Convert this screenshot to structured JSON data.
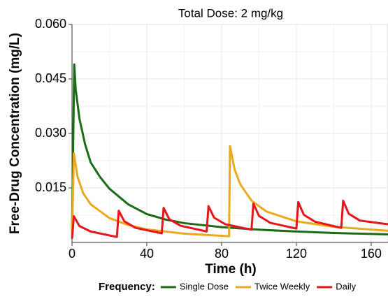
{
  "chart_data": {
    "type": "line",
    "title": "Total Dose: 2 mg/kg",
    "x_label": "Time (h)",
    "y_label": "Free-Drug Concentration (mg/L)",
    "legend_title": "Frequency:",
    "legend_position": "bottom",
    "grid": true,
    "xlim": [
      0,
      169
    ],
    "ylim": [
      0,
      0.06
    ],
    "xticks": [
      0,
      40,
      80,
      120,
      160
    ],
    "yticks": [
      0.015,
      {
        "value": 0.03,
        "label": "0.030"
      },
      0.045,
      {
        "value": 0.06,
        "label": "0.060"
      }
    ],
    "series": [
      {
        "name": "Single Dose",
        "color": "#1a6b14",
        "x": [
          0,
          1.2,
          2,
          4,
          7,
          10,
          15,
          20,
          30,
          40,
          50,
          60,
          80,
          100,
          120,
          140,
          169
        ],
        "values": [
          0.003,
          0.049,
          0.042,
          0.034,
          0.027,
          0.022,
          0.018,
          0.0148,
          0.0105,
          0.0078,
          0.0063,
          0.0053,
          0.0042,
          0.0035,
          0.003,
          0.0026,
          0.0022
        ]
      },
      {
        "name": "Twice Weekly",
        "color": "#e8a91c",
        "x": [
          0,
          1,
          3,
          6,
          10,
          20,
          30,
          40,
          60,
          84,
          84.5,
          87,
          90,
          96,
          104,
          120,
          140,
          169
        ],
        "values": [
          0.002,
          0.0245,
          0.018,
          0.0135,
          0.0105,
          0.0067,
          0.0048,
          0.0036,
          0.0024,
          0.0017,
          0.0265,
          0.02,
          0.016,
          0.0115,
          0.0085,
          0.0058,
          0.0043,
          0.0032
        ]
      },
      {
        "name": "Daily",
        "color": "#e8141a",
        "x": [
          0,
          1,
          4,
          10,
          24,
          25,
          28,
          34,
          48,
          49,
          52,
          58,
          72,
          73,
          76,
          82,
          96,
          97,
          100,
          106,
          120,
          121,
          124,
          130,
          144,
          145,
          148,
          154,
          169
        ],
        "values": [
          0.001,
          0.0072,
          0.0045,
          0.003,
          0.0015,
          0.0087,
          0.0058,
          0.004,
          0.0025,
          0.0095,
          0.0064,
          0.0046,
          0.003,
          0.01,
          0.0068,
          0.005,
          0.0035,
          0.0107,
          0.0073,
          0.0054,
          0.0038,
          0.0111,
          0.0076,
          0.0057,
          0.004,
          0.0115,
          0.0079,
          0.006,
          0.005
        ]
      }
    ]
  }
}
